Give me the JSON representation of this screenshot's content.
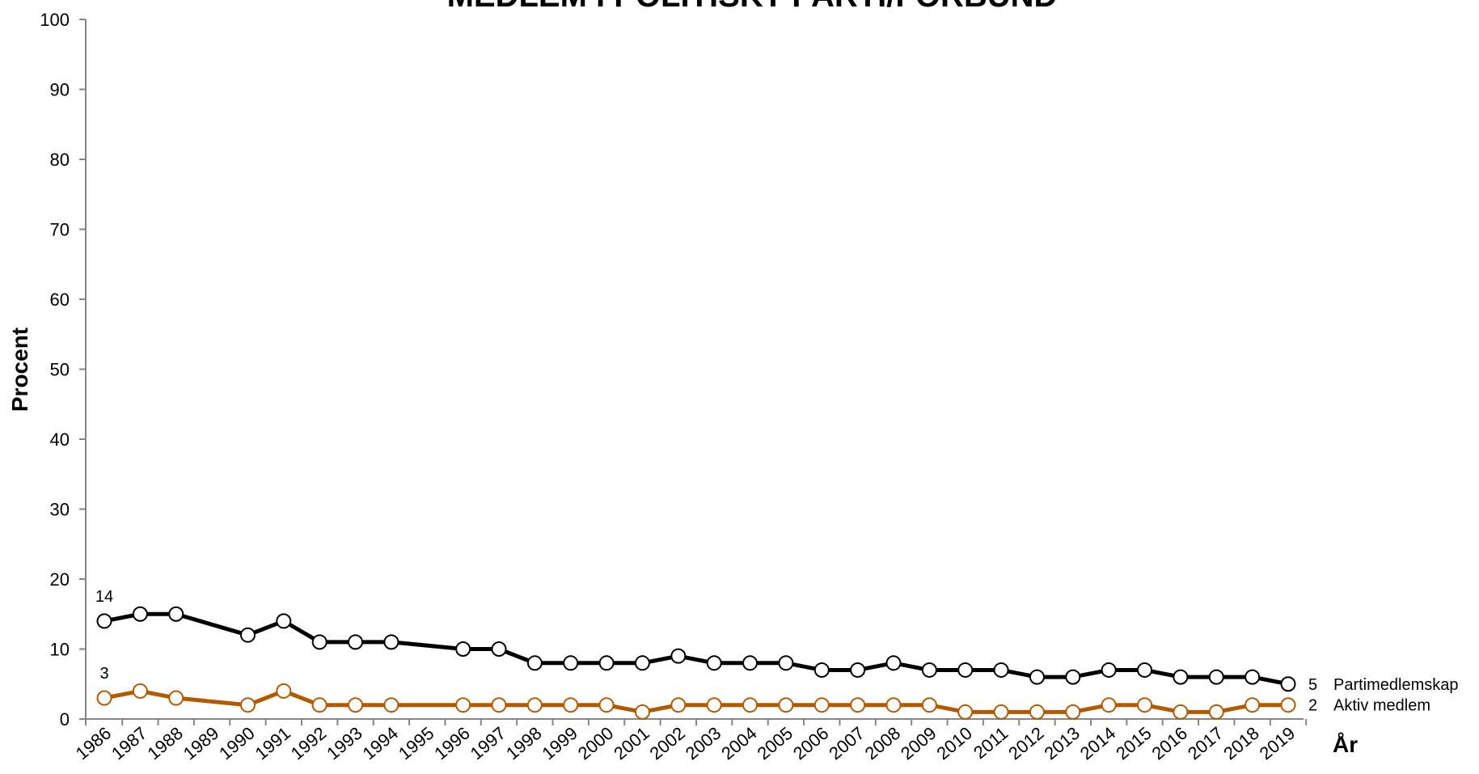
{
  "chart_data": {
    "type": "line",
    "title": "MEDLEM I POLITISKT PARTI/FÖRBUND",
    "xlabel": "År",
    "ylabel": "Procent",
    "ylim": [
      0,
      100
    ],
    "yticks": [
      0,
      10,
      20,
      30,
      40,
      50,
      60,
      70,
      80,
      90,
      100
    ],
    "x": [
      "1986",
      "1987",
      "1988",
      "1989",
      "1990",
      "1991",
      "1992",
      "1993",
      "1994",
      "1995",
      "1996",
      "1997",
      "1998",
      "1999",
      "2000",
      "2001",
      "2002",
      "2003",
      "2004",
      "2005",
      "2006",
      "2007",
      "2008",
      "2009",
      "2010",
      "2011",
      "2012",
      "2013",
      "2014",
      "2015",
      "2016",
      "2017",
      "2018",
      "2019"
    ],
    "grid": false,
    "legend": "right-end",
    "series": [
      {
        "name": "Partimedlemskap",
        "color": "#000000",
        "values": [
          14,
          15,
          15,
          null,
          12,
          14,
          11,
          11,
          11,
          null,
          10,
          10,
          8,
          8,
          8,
          8,
          9,
          8,
          8,
          8,
          7,
          7,
          8,
          7,
          7,
          7,
          6,
          6,
          7,
          7,
          6,
          6,
          6,
          5
        ],
        "first_label": "14",
        "last_label": "5"
      },
      {
        "name": "Aktiv medlem",
        "color": "#B35A00",
        "values": [
          3,
          4,
          3,
          null,
          2,
          4,
          2,
          2,
          2,
          null,
          2,
          2,
          2,
          2,
          2,
          1,
          2,
          2,
          2,
          2,
          2,
          2,
          2,
          2,
          1,
          1,
          1,
          1,
          2,
          2,
          1,
          1,
          2,
          2
        ],
        "first_label": "3",
        "last_label": "2"
      }
    ]
  }
}
